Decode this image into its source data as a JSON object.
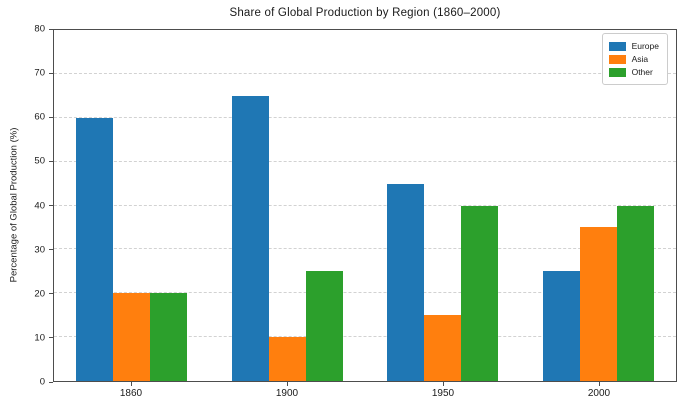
{
  "chart_data": {
    "type": "bar",
    "title": "Share of Global Production by Region (1860–2000)",
    "ylabel": "Percentage of Global Production (%)",
    "xlabel": "",
    "categories": [
      "1860",
      "1900",
      "1950",
      "2000"
    ],
    "series": [
      {
        "name": "Europe",
        "color": "#1f77b4",
        "values": [
          60,
          65,
          45,
          25
        ]
      },
      {
        "name": "Asia",
        "color": "#ff7f0e",
        "values": [
          20,
          10,
          15,
          35
        ]
      },
      {
        "name": "Other",
        "color": "#2ca02c",
        "values": [
          20,
          25,
          40,
          40
        ]
      }
    ],
    "ylim": [
      0,
      80
    ],
    "yticks": [
      0,
      10,
      20,
      30,
      40,
      50,
      60,
      70,
      80
    ],
    "grid": "horizontal-dashed",
    "legend_position": "upper-right",
    "colors": {
      "spine": "#4d4d4d",
      "gridline": "#d2d2d2",
      "text": "#1a1a1a",
      "background": "#ffffff"
    }
  }
}
